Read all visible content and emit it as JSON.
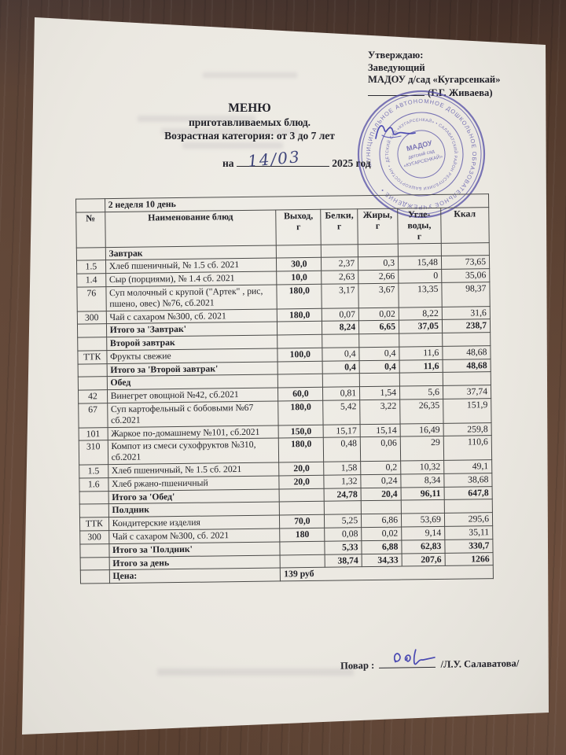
{
  "approval": {
    "line1": "Утверждаю:",
    "line2": "Заведующий",
    "line3": "МАДОУ д/сад «Кугарсенкай»",
    "name": "(Г.Г. Живаева)"
  },
  "stamp": {
    "outer_ring_text": "МУНИЦИПАЛЬНОЕ АВТОНОМНОЕ ДОШКОЛЬНОЕ ОБРАЗОВАТЕЛЬНОЕ УЧРЕЖДЕНИЕ • ",
    "inner_ring_text": "ДЕТСКИЙ САД «КУГАРСЕНКАЙ» • САЛАВАТСКИЙ РАЙОН РЕСПУБЛИКИ БАШКОРТОСТАН • ",
    "center_line1": "МАДОУ",
    "center_line2": "детский сад",
    "center_line3": "«КУГАРСЕНКАЙ»",
    "color": "#4d47a3"
  },
  "title": {
    "line1": "МЕНЮ",
    "line2": "приготавливаемых блюд.",
    "line3": "Возрастная категория: от 3  до 7 лет"
  },
  "date_line": {
    "prefix": "на",
    "handwritten_date": "14/03",
    "suffix": "2025 год"
  },
  "menu_table": {
    "week_label": "2 неделя 10 день",
    "columns": [
      "№",
      "Наименование блюд",
      "Выход,\nг",
      "Белки,\nг",
      "Жиры,\nг",
      "Угле-\nводы,\nг",
      "Ккал"
    ],
    "rows": [
      {
        "type": "section",
        "name": "Завтрак"
      },
      {
        "type": "item",
        "num": "1.5",
        "name": "Хлеб пшеничный, № 1.5 сб. 2021",
        "out": "30,0",
        "protein": "2,37",
        "fat": "0,3",
        "carbs": "15,48",
        "kcal": "73,65"
      },
      {
        "type": "item",
        "num": "1.4",
        "name": "Сыр (порциями), № 1.4 сб. 2021",
        "out": "10,0",
        "protein": "2,63",
        "fat": "2,66",
        "carbs": "0",
        "kcal": "35,06"
      },
      {
        "type": "item",
        "num": "76",
        "name": "Суп молочный с крупой (\"Артек\" , рис, пшено, овес) №76, сб.2021",
        "out": "180,0",
        "protein": "3,17",
        "fat": "3,67",
        "carbs": "13,35",
        "kcal": "98,37"
      },
      {
        "type": "item",
        "num": "300",
        "name": "Чай с сахаром №300, сб. 2021",
        "out": "180,0",
        "protein": "0,07",
        "fat": "0,02",
        "carbs": "8,22",
        "kcal": "31,6"
      },
      {
        "type": "total",
        "name": "Итого за 'Завтрак'",
        "protein": "8,24",
        "fat": "6,65",
        "carbs": "37,05",
        "kcal": "238,7"
      },
      {
        "type": "section",
        "name": "Второй завтрак"
      },
      {
        "type": "item",
        "num": "ТТК",
        "name": "Фрукты свежие",
        "out": "100,0",
        "protein": "0,4",
        "fat": "0,4",
        "carbs": "11,6",
        "kcal": "48,68"
      },
      {
        "type": "total",
        "name": "Итого за 'Второй завтрак'",
        "protein": "0,4",
        "fat": "0,4",
        "carbs": "11,6",
        "kcal": "48,68"
      },
      {
        "type": "section",
        "name": "Обед"
      },
      {
        "type": "item",
        "num": "42",
        "name": "Винегрет овощной  №42, сб.2021",
        "out": "60,0",
        "protein": "0,81",
        "fat": "1,54",
        "carbs": "5,6",
        "kcal": "37,74"
      },
      {
        "type": "item",
        "num": "67",
        "name": "Суп картофельный с бобовыми №67 сб.2021",
        "out": "180,0",
        "protein": "5,42",
        "fat": "3,22",
        "carbs": "26,35",
        "kcal": "151,9"
      },
      {
        "type": "item",
        "num": "101",
        "name": "Жаркое по-домашнему  №101, сб.2021",
        "out": "150,0",
        "protein": "15,17",
        "fat": "15,14",
        "carbs": "16,49",
        "kcal": "259,8"
      },
      {
        "type": "item",
        "num": "310",
        "name": "Компот из смеси сухофруктов №310, сб.2021",
        "out": "180,0",
        "protein": "0,48",
        "fat": "0,06",
        "carbs": "29",
        "kcal": "110,6"
      },
      {
        "type": "item",
        "num": "1.5",
        "name": "Хлеб пшеничный, № 1.5 сб. 2021",
        "out": "20,0",
        "protein": "1,58",
        "fat": "0,2",
        "carbs": "10,32",
        "kcal": "49,1"
      },
      {
        "type": "item",
        "num": "1.6",
        "name": "Хлеб ржано-пшеничный",
        "out": "20,0",
        "protein": "1,32",
        "fat": "0,24",
        "carbs": "8,34",
        "kcal": "38,68"
      },
      {
        "type": "total",
        "name": "Итого за 'Обед'",
        "protein": "24,78",
        "fat": "20,4",
        "carbs": "96,11",
        "kcal": "647,8"
      },
      {
        "type": "section",
        "name": "Полдник"
      },
      {
        "type": "item",
        "num": "ТТК",
        "name": "Кондитерские изделия",
        "out": "70,0",
        "protein": "5,25",
        "fat": "6,86",
        "carbs": "53,69",
        "kcal": "295,6"
      },
      {
        "type": "item",
        "num": "300",
        "name": "Чай с сахаром №300, сб. 2021",
        "out": "180",
        "protein": "0,08",
        "fat": "0,02",
        "carbs": "9,14",
        "kcal": "35,11"
      },
      {
        "type": "total",
        "name": "Итого за 'Полдник'",
        "protein": "5,33",
        "fat": "6,88",
        "carbs": "62,83",
        "kcal": "330,7"
      },
      {
        "type": "total",
        "name": "Итого за день",
        "protein": "38,74",
        "fat": "34,33",
        "carbs": "207,6",
        "kcal": "1266"
      },
      {
        "type": "price",
        "name": "Цена:",
        "value": "139 руб"
      }
    ]
  },
  "footer": {
    "cook_label": "Повар :",
    "cook_name": "/Л.У. Салаватова/"
  },
  "colors": {
    "paper": "#ebe8e1",
    "wood": "#5e4232",
    "ink": "#22222a",
    "stamp_blue": "#4d47a3",
    "signature_blue": "#3c3cae"
  }
}
